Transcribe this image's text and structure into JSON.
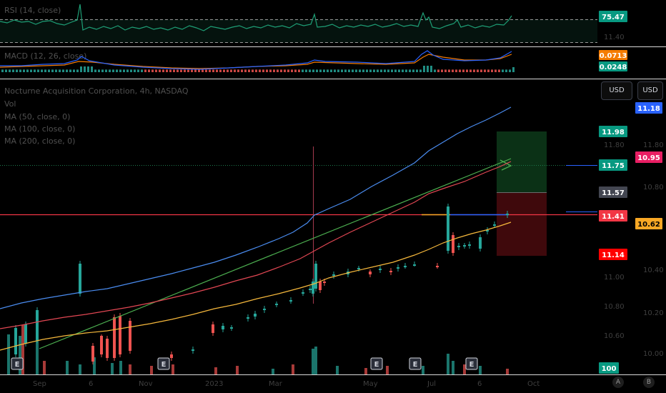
{
  "panes": {
    "rsi": {
      "legend": "RSI (14, close)",
      "value": "75.47",
      "color": "#089981",
      "levels": [
        70,
        30
      ]
    },
    "macd": {
      "legend": "MACD (12, 26, close)",
      "values": [
        "0.0713",
        "0.0248"
      ],
      "colors": [
        "#f57c00",
        "#089981"
      ]
    },
    "main": {
      "title": "Nocturne Acquisition Corporation, 4h, NASDAQ",
      "legends": [
        "Vol",
        "MA (50, close, 0)",
        "MA (100, close, 0)",
        "MA (200, close, 0)"
      ],
      "currency_buttons": [
        "USD",
        "USD"
      ]
    }
  },
  "price_labels": [
    {
      "text": "11.18",
      "color": "#2962ff"
    },
    {
      "text": "11.98",
      "color": "#089981"
    },
    {
      "text": "10.95",
      "color": "#e91e63"
    },
    {
      "text": "11.75",
      "color": "#089981"
    },
    {
      "text": "11.57",
      "color": "#434651"
    },
    {
      "text": "11.41",
      "color": "#f23645"
    },
    {
      "text": "10.62",
      "color": "#f9a825"
    },
    {
      "text": "11.14",
      "color": "#ff0000"
    },
    {
      "text": "100",
      "color": "#089981"
    }
  ],
  "faint_axis_labels": [
    "11.80",
    "10.80",
    "11.00",
    "10.40",
    "10.20",
    "10.60",
    "10.00",
    "11.40"
  ],
  "earnings_marker": "E",
  "time_axis": [
    "Sep",
    "6",
    "Nov",
    "2023",
    "Mar",
    "May",
    "Jul",
    "6",
    "Oct"
  ],
  "corner_buttons": [
    "A",
    "B"
  ],
  "chart_data": {
    "type": "candlestick",
    "series": [
      {
        "name": "MA (50, close, 0)",
        "color": "#f9a825"
      },
      {
        "name": "MA (100, close, 0)",
        "color": "#f23645"
      },
      {
        "name": "MA (200, close, 0)",
        "color": "#2962ff"
      }
    ],
    "reference_levels": [
      11.98,
      11.75,
      11.57,
      11.41,
      11.14
    ],
    "position_tool": {
      "target": 11.98,
      "entry": 11.57,
      "stop": 11.14
    }
  }
}
